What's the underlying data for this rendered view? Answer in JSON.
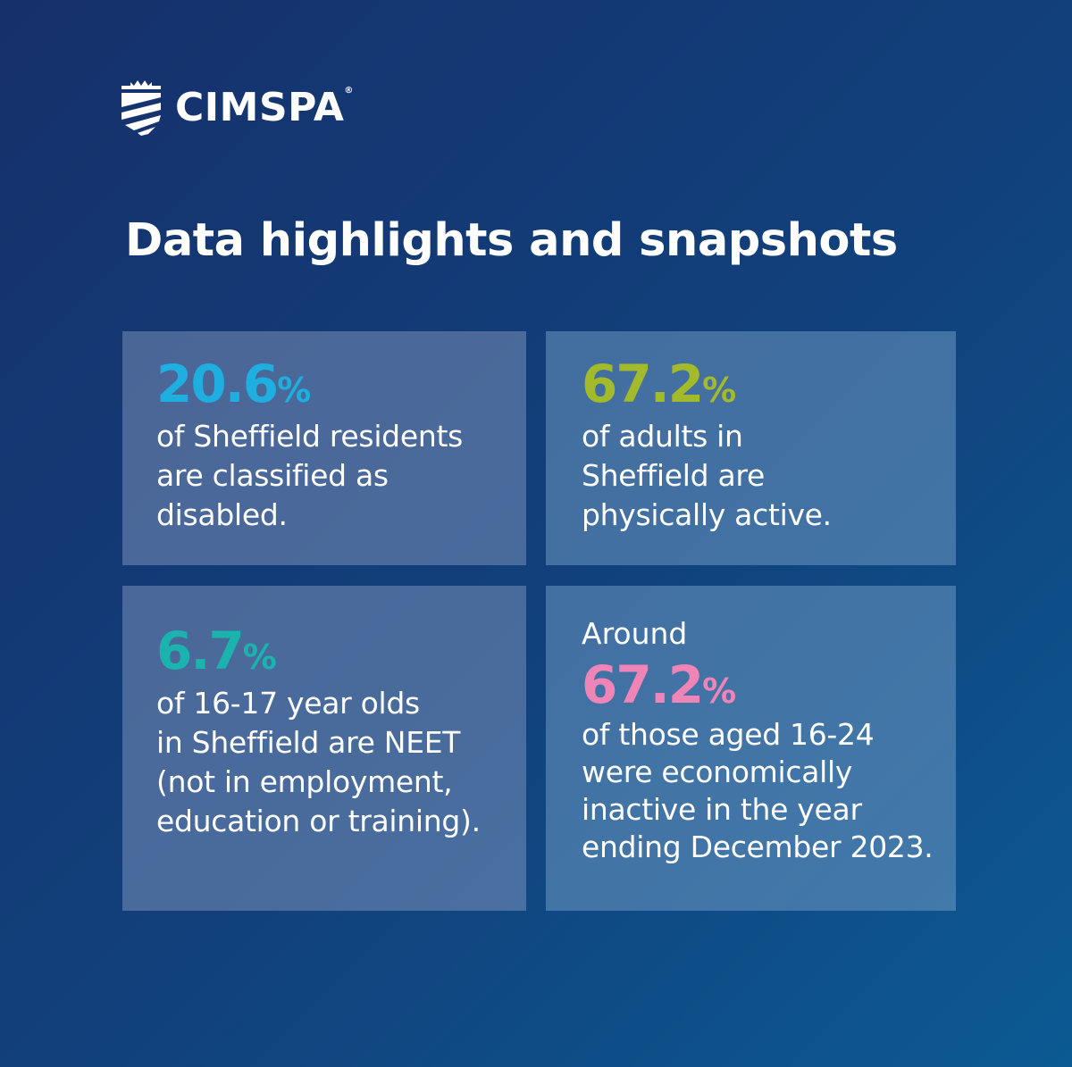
{
  "brand": {
    "name": "CIMSPA",
    "registered": "®",
    "logo_icon": "shield-crest-icon"
  },
  "title": "Data highlights and snapshots",
  "colors": {
    "card1_stat": "#1eaedf",
    "card2_stat": "#a3ba2a",
    "card3_stat": "#1ab3ae",
    "card4_stat": "#ef85b7"
  },
  "cards": [
    {
      "value": "20.6",
      "unit": "%",
      "lines": [
        "of Sheffield residents",
        "are classified as",
        "disabled."
      ]
    },
    {
      "value": "67.2",
      "unit": "%",
      "lines": [
        "of adults in",
        "Sheffield are",
        "physically active."
      ]
    },
    {
      "value": "6.7",
      "unit": "%",
      "lines": [
        "of 16-17 year olds",
        "in Sheffield are NEET",
        "(not in employment,",
        "education or training)."
      ]
    },
    {
      "lead": "Around",
      "value": "67.2",
      "unit": "%",
      "lines": [
        "of those aged 16-24",
        "were economically",
        "inactive in the year",
        "ending December 2023."
      ]
    }
  ]
}
